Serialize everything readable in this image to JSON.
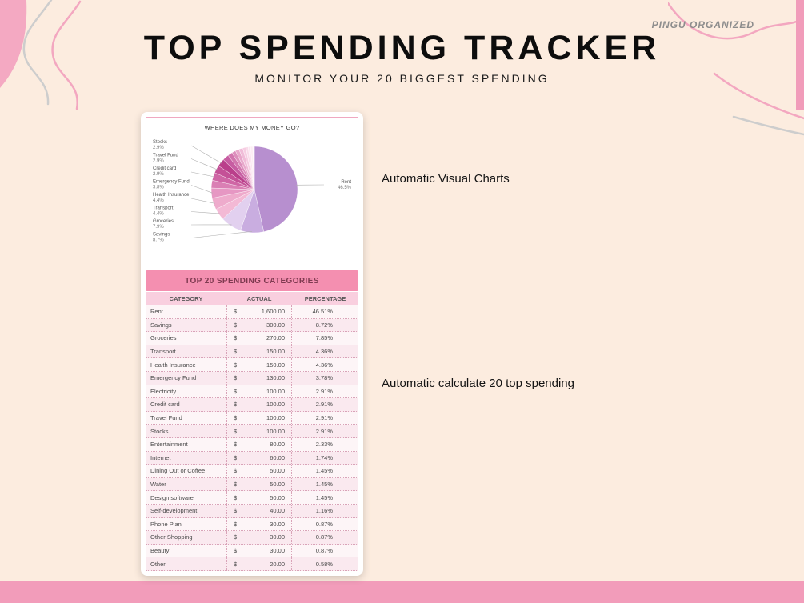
{
  "brand": "PINGU ORGANIZED",
  "header": {
    "title": "TOP SPENDING TRACKER",
    "subtitle": "MONITOR YOUR 20 BIGGEST SPENDING"
  },
  "annotations": {
    "chart": "Automatic Visual Charts",
    "table": "Automatic calculate 20 top spending"
  },
  "chart_data": {
    "type": "pie",
    "title": "WHERE DOES MY MONEY GO?",
    "labels": [
      "Rent",
      "Savings",
      "Groceries",
      "Transport",
      "Health Insurance",
      "Emergency Fund",
      "Electricity",
      "Credit card",
      "Travel Fund",
      "Stocks",
      "Entertainment",
      "Internet",
      "Dining Out or Coffee",
      "Water",
      "Design software",
      "Self-development",
      "Phone Plan",
      "Other Shopping",
      "Beauty",
      "Other"
    ],
    "values": [
      46.51,
      8.72,
      7.85,
      4.36,
      4.36,
      3.78,
      2.91,
      2.91,
      2.91,
      2.91,
      2.33,
      1.74,
      1.45,
      1.45,
      1.45,
      1.16,
      0.87,
      0.87,
      0.87,
      0.58
    ],
    "colors": [
      "#b78fcf",
      "#c9ade0",
      "#e2d0ef",
      "#f3b9d5",
      "#eeabcc",
      "#e697c3",
      "#da7fb4",
      "#cf66a5",
      "#c45197",
      "#ba3f8b",
      "#c75da2",
      "#d276ae",
      "#dd8fbc",
      "#e8a8cb",
      "#f0bcd8",
      "#f6cde2",
      "#f9dbea",
      "#fbe5f0",
      "#fdedf4",
      "#fef5f9"
    ],
    "legend_position": "none",
    "callouts": [
      {
        "name": "Stocks",
        "pct": "2.9%",
        "slice": 9,
        "side": "left"
      },
      {
        "name": "Travel Fund",
        "pct": "2.9%",
        "slice": 8,
        "side": "left"
      },
      {
        "name": "Credit card",
        "pct": "2.9%",
        "slice": 7,
        "side": "left"
      },
      {
        "name": "Emergency Fund",
        "pct": "3.8%",
        "slice": 5,
        "side": "left"
      },
      {
        "name": "Health Insurance",
        "pct": "4.4%",
        "slice": 4,
        "side": "left"
      },
      {
        "name": "Transport",
        "pct": "4.4%",
        "slice": 3,
        "side": "left"
      },
      {
        "name": "Groceries",
        "pct": "7.9%",
        "slice": 2,
        "side": "left"
      },
      {
        "name": "Savings",
        "pct": "8.7%",
        "slice": 1,
        "side": "left"
      },
      {
        "name": "Rent",
        "pct": "46.5%",
        "slice": 0,
        "side": "right"
      }
    ]
  },
  "table": {
    "title": "TOP 20 SPENDING CATEGORIES",
    "columns": [
      "CATEGORY",
      "ACTUAL",
      "PERCENTAGE"
    ],
    "currency_symbol": "$",
    "rows": [
      {
        "category": "Rent",
        "actual": "1,600.00",
        "percentage": "46.51%"
      },
      {
        "category": "Savings",
        "actual": "300.00",
        "percentage": "8.72%"
      },
      {
        "category": "Groceries",
        "actual": "270.00",
        "percentage": "7.85%"
      },
      {
        "category": "Transport",
        "actual": "150.00",
        "percentage": "4.36%"
      },
      {
        "category": "Health Insurance",
        "actual": "150.00",
        "percentage": "4.36%"
      },
      {
        "category": "Emergency Fund",
        "actual": "130.00",
        "percentage": "3.78%"
      },
      {
        "category": "Electricity",
        "actual": "100.00",
        "percentage": "2.91%"
      },
      {
        "category": "Credit card",
        "actual": "100.00",
        "percentage": "2.91%"
      },
      {
        "category": "Travel Fund",
        "actual": "100.00",
        "percentage": "2.91%"
      },
      {
        "category": "Stocks",
        "actual": "100.00",
        "percentage": "2.91%"
      },
      {
        "category": "Entertainment",
        "actual": "80.00",
        "percentage": "2.33%"
      },
      {
        "category": "Internet",
        "actual": "60.00",
        "percentage": "1.74%"
      },
      {
        "category": "Dining Out or Coffee",
        "actual": "50.00",
        "percentage": "1.45%"
      },
      {
        "category": "Water",
        "actual": "50.00",
        "percentage": "1.45%"
      },
      {
        "category": "Design software",
        "actual": "50.00",
        "percentage": "1.45%"
      },
      {
        "category": "Self-development",
        "actual": "40.00",
        "percentage": "1.16%"
      },
      {
        "category": "Phone Plan",
        "actual": "30.00",
        "percentage": "0.87%"
      },
      {
        "category": "Other Shopping",
        "actual": "30.00",
        "percentage": "0.87%"
      },
      {
        "category": "Beauty",
        "actual": "30.00",
        "percentage": "0.87%"
      },
      {
        "category": "Other",
        "actual": "20.00",
        "percentage": "0.58%"
      }
    ]
  },
  "colors": {
    "background": "#fcecdf",
    "accent_pink": "#f29cba",
    "table_header_pink": "#f48fb0",
    "column_header_pink": "#f9cfdf"
  }
}
